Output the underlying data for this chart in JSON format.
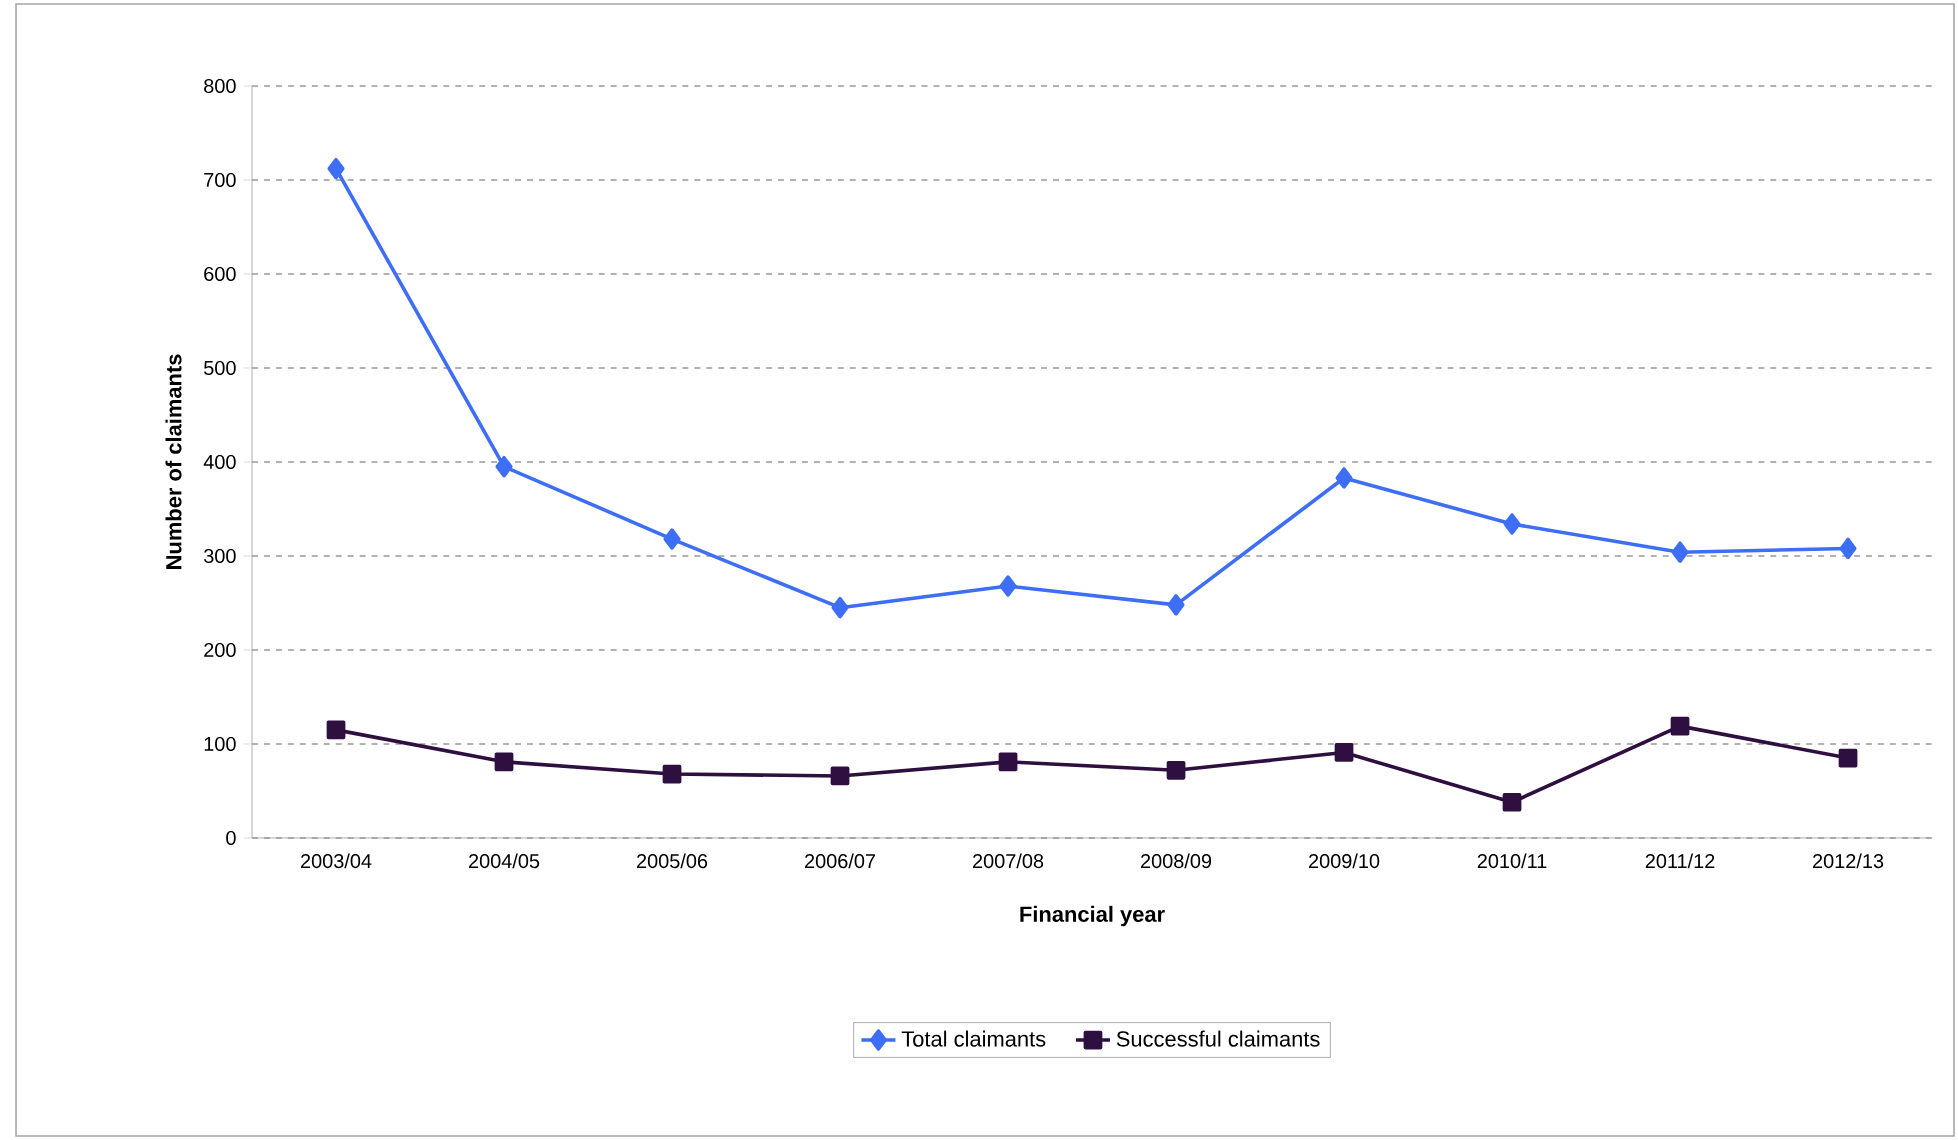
{
  "chart_data": {
    "type": "line",
    "xlabel": "Financial year",
    "ylabel": "Number of claimants",
    "categories": [
      "2003/04",
      "2004/05",
      "2005/06",
      "2006/07",
      "2007/08",
      "2008/09",
      "2009/10",
      "2010/11",
      "2011/12",
      "2012/13"
    ],
    "series": [
      {
        "name": "Total claimants",
        "color": "#3d6ef5",
        "marker": "diamond",
        "values": [
          712,
          395,
          318,
          245,
          268,
          248,
          383,
          334,
          304,
          308
        ]
      },
      {
        "name": "Successful claimants",
        "color": "#2e0f3f",
        "marker": "square",
        "values": [
          115,
          81,
          68,
          66,
          81,
          72,
          91,
          38,
          119,
          85
        ]
      }
    ],
    "ylim": [
      0,
      800
    ],
    "yticks": [
      0,
      100,
      200,
      300,
      400,
      500,
      600,
      700,
      800
    ],
    "grid": "y",
    "legend": "bottom"
  }
}
